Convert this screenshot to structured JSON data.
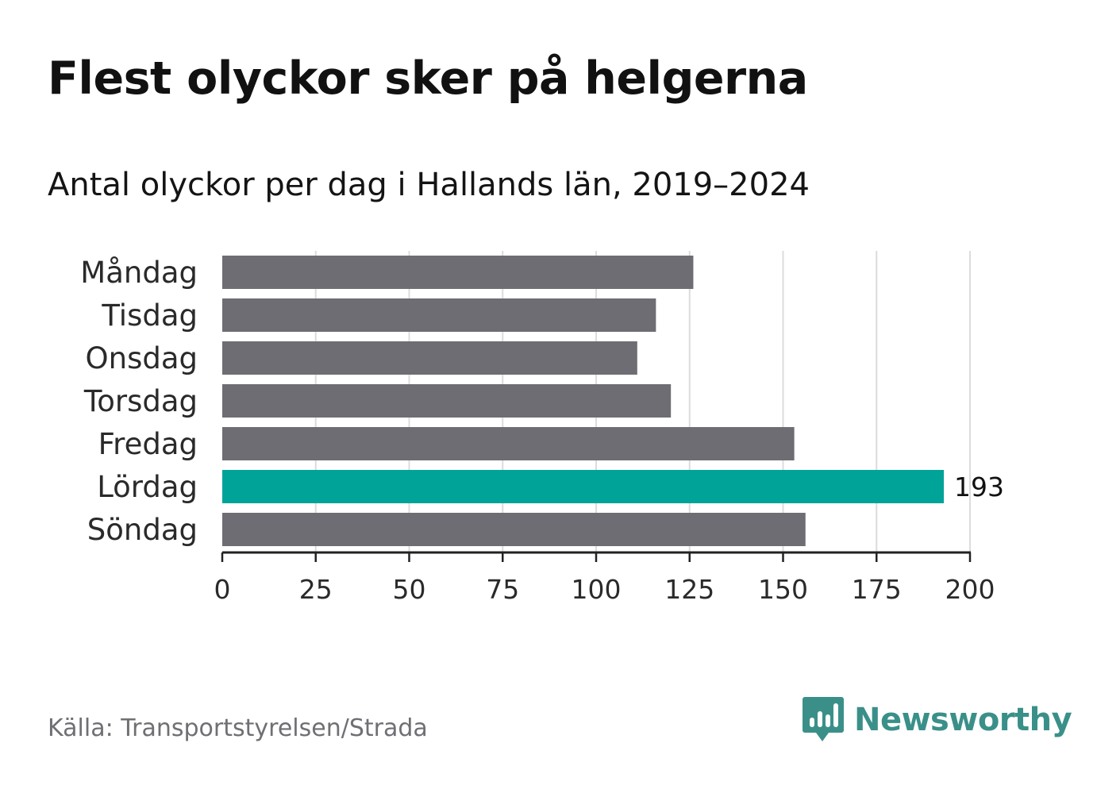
{
  "title": "Flest olyckor sker på helgerna",
  "subtitle": "Antal olyckor per dag i Hallands län, 2019–2024",
  "source": "Källa: Transportstyrelsen/Strada",
  "brand": "Newsworthy",
  "colors": {
    "bar": "#6e6d73",
    "highlight": "#00a397",
    "grid": "#dcdcdc",
    "axis": "#222222",
    "brand": "#3a9089"
  },
  "chart_data": {
    "type": "bar",
    "orientation": "horizontal",
    "categories": [
      "Måndag",
      "Tisdag",
      "Onsdag",
      "Torsdag",
      "Fredag",
      "Lördag",
      "Söndag"
    ],
    "values": [
      126,
      116,
      111,
      120,
      153,
      193,
      156
    ],
    "highlight_index": 5,
    "value_labels": [
      "",
      "",
      "",
      "",
      "",
      "193",
      ""
    ],
    "xlim": [
      0,
      200
    ],
    "xticks": [
      0,
      25,
      50,
      75,
      100,
      125,
      150,
      175,
      200
    ],
    "grid": true,
    "xlabel": "",
    "ylabel": ""
  }
}
